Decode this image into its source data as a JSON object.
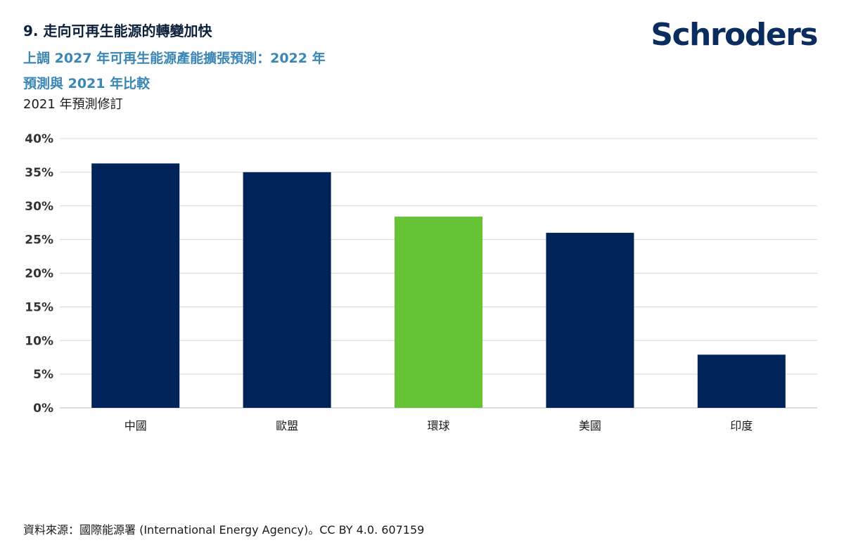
{
  "header": {
    "title": "9. 走向可再生能源的轉變加快",
    "subtitle_line1": "上調 2027 年可再生能源產能擴張預測：2022 年",
    "subtitle_line2": "預測與 2021 年比較",
    "logo": "Schroders"
  },
  "colors": {
    "bar_default": "#00235a",
    "bar_highlight": "#66c335",
    "grid": "#d9d9d9",
    "axis": "#bfbfbf"
  },
  "chart_data": {
    "type": "bar",
    "categories": [
      "中國",
      "歐盟",
      "環球",
      "美國",
      "印度"
    ],
    "series": [
      {
        "name": "2021 年預測修訂",
        "values": [
          36.3,
          35.0,
          28.4,
          26.0,
          7.9
        ]
      }
    ],
    "highlight_index": 2,
    "ylim": [
      0,
      40
    ],
    "yticks": [
      "0%",
      "5%",
      "10%",
      "15%",
      "20%",
      "25%",
      "30%",
      "35%",
      "40%"
    ],
    "grid": true
  },
  "footer": {
    "source": "資料來源：國際能源署 (International Energy Agency)。CC BY 4.0. 607159"
  }
}
